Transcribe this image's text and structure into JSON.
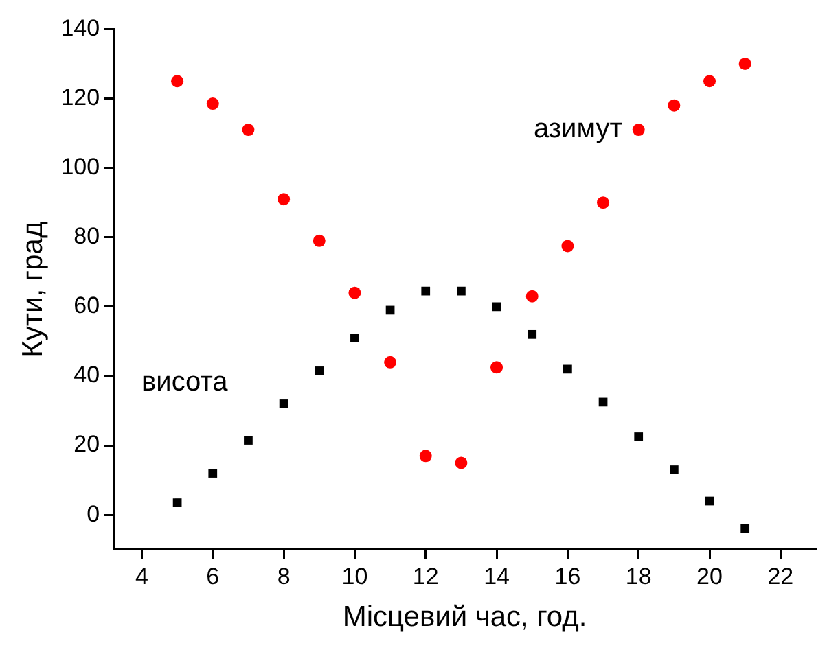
{
  "chart_data": {
    "type": "scatter",
    "xlabel": "Місцевий час, год.",
    "ylabel": "Кути, град",
    "x": [
      5,
      6,
      7,
      8,
      9,
      10,
      11,
      12,
      13,
      14,
      15,
      16,
      17,
      18,
      19,
      20,
      21
    ],
    "series": [
      {
        "name": "азимут",
        "color": "#ff0000",
        "marker": "circle",
        "values": [
          125,
          118.5,
          111,
          91,
          79,
          64,
          44,
          17,
          15,
          42.5,
          63,
          77.5,
          90,
          111,
          118,
          125,
          130
        ]
      },
      {
        "name": "висота",
        "color": "#000000",
        "marker": "square",
        "values": [
          3.5,
          12,
          21.5,
          32,
          41.5,
          51,
          59,
          64.5,
          64.5,
          60,
          52,
          42,
          32.5,
          22.5,
          13,
          4,
          -4
        ]
      }
    ],
    "xlim": [
      3.2,
      23
    ],
    "xticks": [
      4,
      6,
      8,
      10,
      12,
      14,
      16,
      18,
      20,
      22
    ],
    "ylim": [
      -10,
      140
    ],
    "yticks": [
      0,
      20,
      40,
      60,
      80,
      100,
      120,
      140
    ],
    "grid": false,
    "legend": false
  }
}
